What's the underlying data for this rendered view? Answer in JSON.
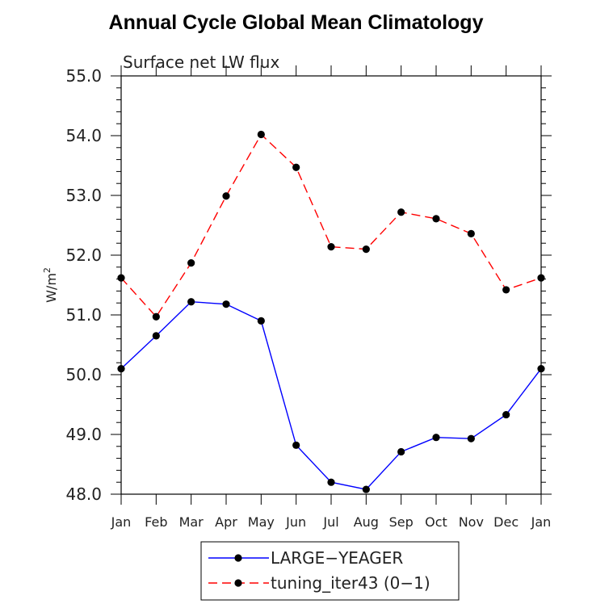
{
  "chart_data": {
    "type": "line",
    "title": "Annual Cycle Global Mean Climatology",
    "subtitle": "Surface net LW flux",
    "ylabel": "W/m",
    "ylabel_sup": "2",
    "xlabel": "",
    "ylim": [
      48.0,
      55.0
    ],
    "yticks": [
      "48.0",
      "49.0",
      "50.0",
      "51.0",
      "52.0",
      "53.0",
      "54.0",
      "55.0"
    ],
    "categories": [
      "Jan",
      "Feb",
      "Mar",
      "Apr",
      "May",
      "Jun",
      "Jul",
      "Aug",
      "Sep",
      "Oct",
      "Nov",
      "Dec",
      "Jan"
    ],
    "series": [
      {
        "name": "LARGE−YEAGER",
        "color": "#0000ff",
        "dash": "solid",
        "values": [
          50.1,
          50.65,
          51.22,
          51.18,
          50.9,
          48.82,
          48.2,
          48.08,
          48.71,
          48.95,
          48.93,
          49.33,
          50.1
        ]
      },
      {
        "name": "tuning_iter43 (0−1)",
        "color": "#ff0000",
        "dash": "dashed",
        "values": [
          51.62,
          50.97,
          51.87,
          52.99,
          54.02,
          53.47,
          52.14,
          52.1,
          52.72,
          52.61,
          52.36,
          51.42,
          51.62
        ]
      }
    ]
  }
}
